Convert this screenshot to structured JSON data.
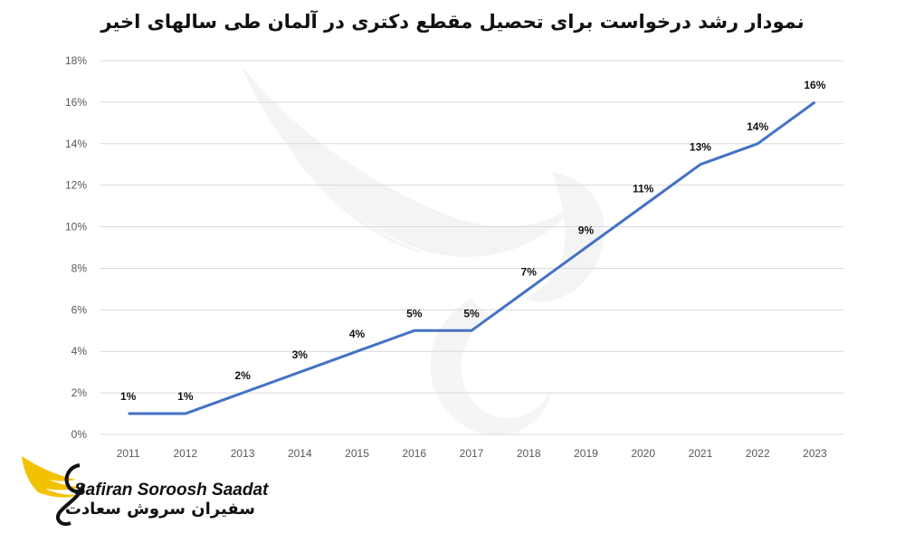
{
  "chart_data": {
    "type": "line",
    "title": "نمودار رشد درخواست برای تحصیل مقطع دکتری در آلمان طی سالهای اخیر",
    "categories": [
      "2011",
      "2012",
      "2013",
      "2014",
      "2015",
      "2016",
      "2017",
      "2018",
      "2019",
      "2020",
      "2021",
      "2022",
      "2023"
    ],
    "series": [
      {
        "values": [
          1,
          1,
          2,
          3,
          4,
          5,
          5,
          7,
          9,
          11,
          13,
          14,
          16
        ]
      }
    ],
    "data_labels": [
      "1%",
      "1%",
      "2%",
      "3%",
      "4%",
      "5%",
      "5%",
      "7%",
      "9%",
      "11%",
      "13%",
      "14%",
      "16%"
    ],
    "ylim": [
      0,
      18
    ],
    "yticks": [
      "0%",
      "2%",
      "4%",
      "6%",
      "8%",
      "10%",
      "12%",
      "14%",
      "16%",
      "18%"
    ],
    "grid": true,
    "line_color": "#4472C4",
    "grid_color": "#D9D9D9"
  },
  "brand": {
    "name_en": "Safiran Soroosh Saadat",
    "name_fa": "سفیران سروش سعادت",
    "logo_color": "#F2C200"
  }
}
